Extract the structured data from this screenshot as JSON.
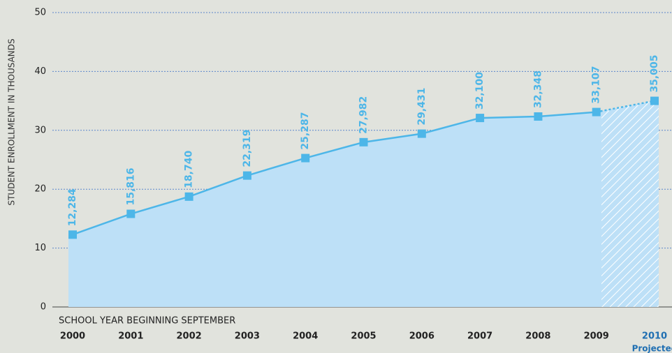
{
  "chart_data": {
    "type": "area",
    "y_axis_label": "STUDENT ENROLLMENT IN THOUSANDS",
    "x_axis_label": "SCHOOL YEAR BEGINNING SEPTEMBER",
    "categories": [
      "2000",
      "2001",
      "2002",
      "2003",
      "2004",
      "2005",
      "2006",
      "2007",
      "2008",
      "2009",
      "2010"
    ],
    "values": [
      12.284,
      15.816,
      18.74,
      22.319,
      25.287,
      27.982,
      29.431,
      32.1,
      32.348,
      33.107,
      35.005
    ],
    "value_labels": [
      "12,284",
      "15,816",
      "18,740",
      "22,319",
      "25,287",
      "27,982",
      "29,431",
      "32,100",
      "32,348",
      "33,107",
      "35,005"
    ],
    "projected_label": "Projected",
    "projected_index": 10,
    "color": "#4db6e8",
    "fill": "#bde0f7",
    "projected_color": "#1f6fb2",
    "ylim": [
      0,
      50
    ],
    "yticks": [
      0,
      10,
      20,
      30,
      40,
      50
    ],
    "grid": true
  }
}
